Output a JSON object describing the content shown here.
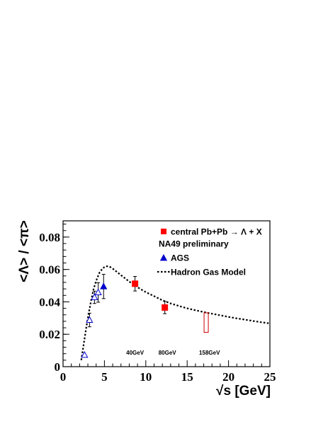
{
  "chart_data": {
    "type": "scatter",
    "xlabel": "√s [GeV]",
    "ylabel": "<Λ> / <π>",
    "xlim": [
      0,
      25
    ],
    "ylim": [
      0,
      0.09
    ],
    "x_ticks": [
      0,
      5,
      10,
      15,
      20,
      25
    ],
    "x_tick_labels": [
      "0",
      "5",
      "10",
      "15",
      "20",
      "25"
    ],
    "y_ticks": [
      0,
      0.02,
      0.04,
      0.06,
      0.08
    ],
    "y_tick_labels": [
      "0",
      "0.02",
      "0.04",
      "0.06",
      "0.08"
    ],
    "legend": {
      "placement": "top-right",
      "entries": [
        {
          "label": "central Pb+Pb → Λ + X",
          "marker": "square",
          "color": "#ff0000"
        },
        {
          "label": "NA49 preliminary",
          "marker": "none"
        },
        {
          "label": "AGS",
          "marker": "triangle",
          "color": "#0000cc"
        },
        {
          "label": "Hadron Gas Model",
          "marker": "dotted-line",
          "color": "#000000"
        }
      ]
    },
    "series": [
      {
        "name": "central Pb+Pb → Λ + X",
        "marker": "square",
        "color": "#ff0000",
        "points": [
          {
            "x": 8.7,
            "y": 0.0512,
            "err": 0.0045
          },
          {
            "x": 12.3,
            "y": 0.0365,
            "err": 0.0038
          }
        ]
      },
      {
        "name": "AGS",
        "marker": "triangle",
        "color": "#0000cc",
        "points": [
          {
            "x": 4.9,
            "y": 0.0495,
            "err": 0.0075,
            "filled": true
          },
          {
            "x": 2.6,
            "y": 0.0072,
            "err": 0,
            "filled": false
          },
          {
            "x": 3.2,
            "y": 0.0288,
            "err": 0.0042,
            "filled": false
          },
          {
            "x": 3.8,
            "y": 0.0428,
            "err": 0.0038,
            "filled": false
          },
          {
            "x": 4.25,
            "y": 0.0458,
            "err": 0.006,
            "filled": false
          }
        ]
      },
      {
        "name": "158GeV",
        "marker": "open-box",
        "color": "#cc0000",
        "points": [
          {
            "x": 17.3,
            "y_low": 0.0212,
            "y_high": 0.0332
          }
        ]
      },
      {
        "name": "Hadron Gas Model",
        "type": "curve",
        "style": "dotted",
        "color": "#000000",
        "points": [
          {
            "x": 2.2,
            "y": 0.004
          },
          {
            "x": 2.5,
            "y": 0.014
          },
          {
            "x": 2.8,
            "y": 0.024
          },
          {
            "x": 3.1,
            "y": 0.033
          },
          {
            "x": 3.4,
            "y": 0.041
          },
          {
            "x": 3.7,
            "y": 0.048
          },
          {
            "x": 4.0,
            "y": 0.053
          },
          {
            "x": 4.4,
            "y": 0.058
          },
          {
            "x": 4.8,
            "y": 0.0608
          },
          {
            "x": 5.2,
            "y": 0.062
          },
          {
            "x": 5.6,
            "y": 0.0618
          },
          {
            "x": 6.0,
            "y": 0.0605
          },
          {
            "x": 7.0,
            "y": 0.0565
          },
          {
            "x": 8.0,
            "y": 0.0525
          },
          {
            "x": 9.0,
            "y": 0.049
          },
          {
            "x": 10.0,
            "y": 0.046
          },
          {
            "x": 11.0,
            "y": 0.0435
          },
          {
            "x": 12.0,
            "y": 0.041
          },
          {
            "x": 13.0,
            "y": 0.039
          },
          {
            "x": 14.0,
            "y": 0.0375
          },
          {
            "x": 15.0,
            "y": 0.036
          },
          {
            "x": 16.0,
            "y": 0.0348
          },
          {
            "x": 17.0,
            "y": 0.0337
          },
          {
            "x": 18.0,
            "y": 0.0327
          },
          {
            "x": 19.0,
            "y": 0.0317
          },
          {
            "x": 20.0,
            "y": 0.0307
          },
          {
            "x": 21.0,
            "y": 0.0298
          },
          {
            "x": 22.0,
            "y": 0.029
          },
          {
            "x": 23.0,
            "y": 0.0282
          },
          {
            "x": 24.0,
            "y": 0.0274
          },
          {
            "x": 25.0,
            "y": 0.0267
          }
        ]
      }
    ],
    "annotations": [
      {
        "text": "40GeV",
        "x": 8.7,
        "y": 0.0075
      },
      {
        "text": "80GeV",
        "x": 12.6,
        "y": 0.0075
      },
      {
        "text": "158GeV",
        "x": 17.7,
        "y": 0.0075
      }
    ]
  }
}
